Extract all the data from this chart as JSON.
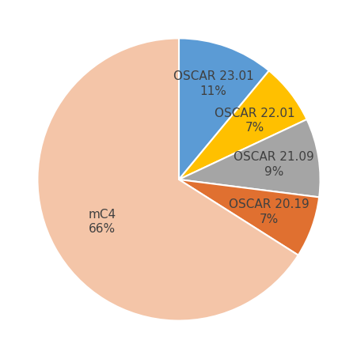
{
  "labels": [
    "OSCAR 23.01",
    "OSCAR 22.01",
    "OSCAR 21.09",
    "OSCAR 20.19",
    "mC4"
  ],
  "values": [
    11,
    7,
    9,
    7,
    66
  ],
  "colors": [
    "#5B9BD5",
    "#FFC000",
    "#A5A5A5",
    "#E07030",
    "#F4C5A8"
  ],
  "label_texts": [
    "OSCAR 23.01\n11%",
    "OSCAR 22.01\n7%",
    "OSCAR 21.09\n9%",
    "OSCAR 20.19\n7%",
    "mC4\n66%"
  ],
  "text_color": "#404040",
  "font_size": 11,
  "startangle": 90,
  "background_color": "#ffffff",
  "label_radii": [
    0.72,
    0.68,
    0.68,
    0.68,
    0.62
  ]
}
